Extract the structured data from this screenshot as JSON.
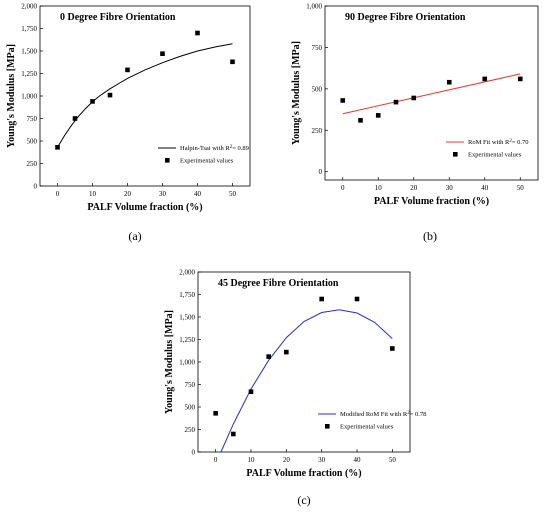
{
  "chart_data": [
    {
      "id": "a",
      "type": "scatter",
      "title": "0 Degree Fibre Orientation",
      "xlabel": "PALF Volume fraction (%)",
      "ylabel": "Young's Modulus [MPa]",
      "xlim": [
        -5,
        55
      ],
      "ylim": [
        0,
        2000
      ],
      "xticks": [
        0,
        10,
        20,
        30,
        40,
        50
      ],
      "yticks": [
        0,
        250,
        500,
        750,
        1000,
        1250,
        1500,
        1750,
        2000
      ],
      "grid": false,
      "legend_position": "bottom-right",
      "series": [
        {
          "kind": "points",
          "name": "Experimental values",
          "color": "#000000",
          "x": [
            0,
            5,
            10,
            15,
            20,
            30,
            40,
            50
          ],
          "y": [
            430,
            750,
            940,
            1010,
            1290,
            1470,
            1700,
            1380
          ]
        },
        {
          "kind": "fit",
          "name": "Halpin-Tsai with R",
          "r2": "= 0.89",
          "color": "#000000",
          "x": [
            0,
            2,
            4,
            6,
            8,
            10,
            12,
            15,
            18,
            20,
            25,
            30,
            35,
            40,
            45,
            50
          ],
          "y": [
            430,
            560,
            675,
            775,
            860,
            935,
            1000,
            1080,
            1150,
            1195,
            1290,
            1370,
            1440,
            1500,
            1545,
            1580
          ]
        }
      ]
    },
    {
      "id": "b",
      "type": "scatter",
      "title": "90 Degree Fibre Orientation",
      "xlabel": "PALF Volume fraction (%)",
      "ylabel": "Young's Modulus [MPa]",
      "xlim": [
        -5,
        55
      ],
      "ylim": [
        -50,
        1000
      ],
      "xticks": [
        0,
        10,
        20,
        30,
        40,
        50
      ],
      "yticks": [
        0,
        250,
        500,
        750,
        1000
      ],
      "grid": false,
      "legend_position": "bottom-right",
      "series": [
        {
          "kind": "points",
          "name": "Experimental values",
          "color": "#000000",
          "x": [
            0,
            5,
            10,
            15,
            20,
            30,
            40,
            50
          ],
          "y": [
            430,
            310,
            340,
            420,
            445,
            540,
            560,
            560
          ]
        },
        {
          "kind": "fit",
          "name": "RoM Fit with R",
          "r2": "= 0.70",
          "color": "#e03a2f",
          "x": [
            0,
            50
          ],
          "y": [
            350,
            590
          ]
        }
      ]
    },
    {
      "id": "c",
      "type": "scatter",
      "title": "45 Degree Fibre Orientation",
      "xlabel": "PALF Volume fraction (%)",
      "ylabel": "Young's Modulus [MPa]",
      "xlim": [
        -5,
        55
      ],
      "ylim": [
        0,
        2000
      ],
      "xticks": [
        0,
        10,
        20,
        30,
        40,
        50
      ],
      "yticks": [
        0,
        250,
        500,
        750,
        1000,
        1250,
        1500,
        1750,
        2000
      ],
      "grid": false,
      "legend_position": "bottom-right",
      "series": [
        {
          "kind": "points",
          "name": "Experimental values",
          "color": "#000000",
          "x": [
            0,
            5,
            10,
            15,
            20,
            30,
            40,
            50
          ],
          "y": [
            430,
            200,
            670,
            1060,
            1110,
            1700,
            1700,
            1150
          ]
        },
        {
          "kind": "fit",
          "name": "Modified RoM Fit with R",
          "r2": "= 0.78",
          "color": "#2c2cc8",
          "x": [
            1.5,
            5,
            10,
            15,
            20,
            25,
            30,
            35,
            40,
            45,
            50
          ],
          "y": [
            0,
            310,
            700,
            1020,
            1270,
            1450,
            1550,
            1580,
            1545,
            1440,
            1260
          ]
        }
      ]
    }
  ],
  "captions": {
    "a": "(a)",
    "b": "(b)",
    "c": "(c)"
  }
}
